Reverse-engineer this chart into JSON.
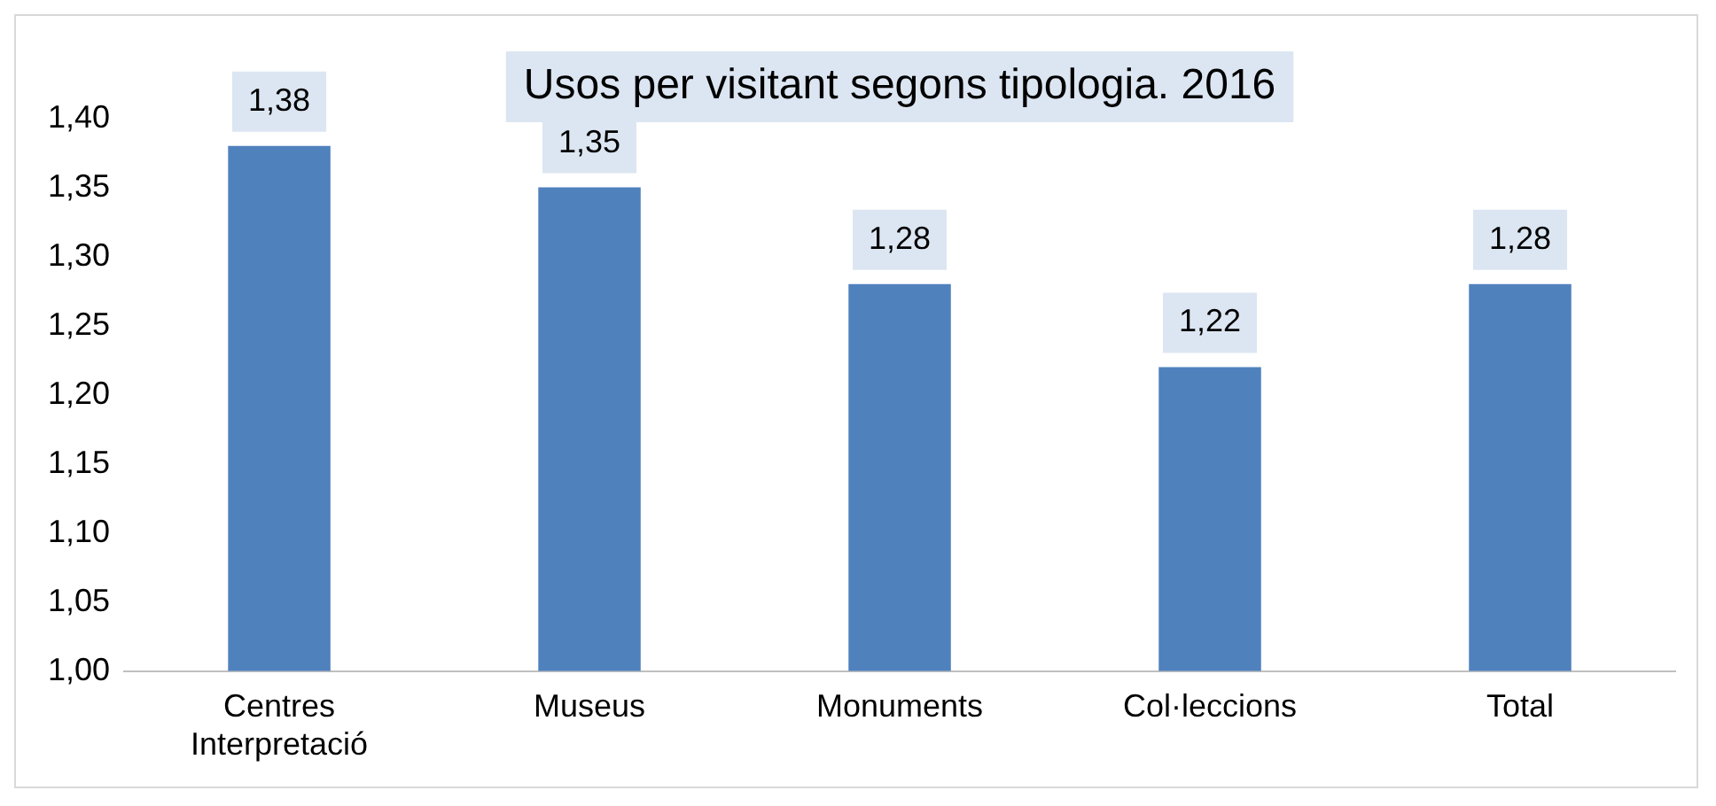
{
  "chart_data": {
    "type": "bar",
    "title": "Usos per visitant segons tipologia. 2016",
    "categories": [
      "Centres Interpretació",
      "Museus",
      "Monuments",
      "Col·leccions",
      "Total"
    ],
    "values": [
      1.38,
      1.35,
      1.28,
      1.22,
      1.28
    ],
    "value_labels": [
      "1,38",
      "1,35",
      "1,28",
      "1,22",
      "1,28"
    ],
    "color": "#4f81bd",
    "ylim": [
      1,
      1.45
    ],
    "yticks": [
      {
        "value": 1,
        "label": "1,00"
      },
      {
        "value": 1.05,
        "label": "1,05"
      },
      {
        "value": 1.1,
        "label": "1,10"
      },
      {
        "value": 1.15,
        "label": "1,15"
      },
      {
        "value": 1.2,
        "label": "1,20"
      },
      {
        "value": 1.25,
        "label": "1,25"
      },
      {
        "value": 1.3,
        "label": "1,30"
      },
      {
        "value": 1.35,
        "label": "1,35"
      },
      {
        "value": 1.4,
        "label": "1,40"
      }
    ],
    "grid": false,
    "legend": false
  }
}
